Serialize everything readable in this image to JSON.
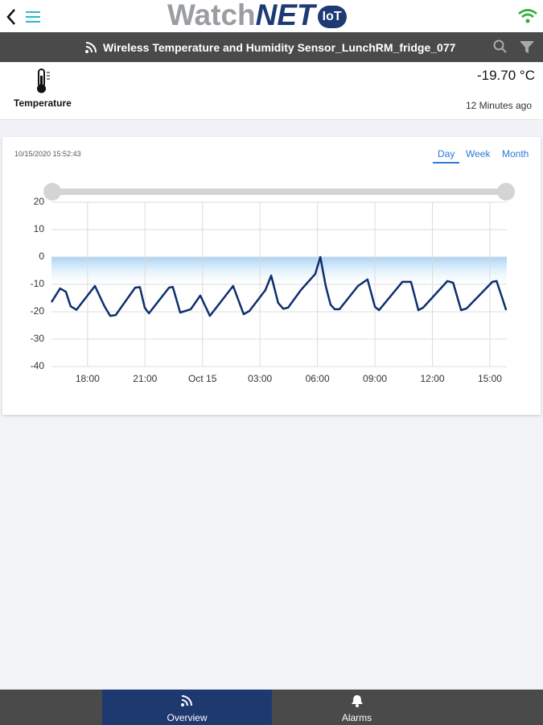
{
  "header": {
    "logo_parts": [
      "Watch",
      "NET",
      "IoT"
    ],
    "device_title": "Wireless Temperature and Humidity Sensor_LunchRM_fridge_077"
  },
  "sensor": {
    "label": "Temperature",
    "reading": "-19.70 °C",
    "updated": "12 Minutes ago"
  },
  "card": {
    "timestamp": "10/15/2020 15:52:43",
    "tabs": [
      "Day",
      "Week",
      "Month"
    ],
    "active_tab": "Day"
  },
  "chart_data": {
    "type": "line",
    "color": "#0e2f6e",
    "grid": true,
    "band": {
      "range": [
        -10,
        0
      ],
      "color": "#a9d3f5"
    },
    "x": [
      "2020-10-14T16:07",
      "2020-10-14T16:34",
      "2020-10-14T16:52",
      "2020-10-14T17:07",
      "2020-10-14T17:25",
      "2020-10-14T18:23",
      "2020-10-14T18:53",
      "2020-10-14T19:11",
      "2020-10-14T19:28",
      "2020-10-14T20:29",
      "2020-10-14T20:44",
      "2020-10-14T20:59",
      "2020-10-14T21:12",
      "2020-10-14T22:15",
      "2020-10-14T22:27",
      "2020-10-14T22:50",
      "2020-10-14T23:23",
      "2020-10-14T23:53",
      "2020-10-15T00:23",
      "2020-10-15T01:36",
      "2020-10-15T02:09",
      "2020-10-15T02:27",
      "2020-10-15T03:17",
      "2020-10-15T03:35",
      "2020-10-15T03:57",
      "2020-10-15T04:13",
      "2020-10-15T04:28",
      "2020-10-15T05:08",
      "2020-10-15T05:53",
      "2020-10-15T06:09",
      "2020-10-15T06:26",
      "2020-10-15T06:41",
      "2020-10-15T06:54",
      "2020-10-15T07:09",
      "2020-10-15T08:07",
      "2020-10-15T08:37",
      "2020-10-15T09:00",
      "2020-10-15T09:13",
      "2020-10-15T10:26",
      "2020-10-15T10:53",
      "2020-10-15T11:16",
      "2020-10-15T11:31",
      "2020-10-15T12:47",
      "2020-10-15T13:05",
      "2020-10-15T13:30",
      "2020-10-15T13:47",
      "2020-10-15T15:08",
      "2020-10-15T15:21",
      "2020-10-15T15:38",
      "2020-10-15T15:51"
    ],
    "values": [
      -16.5,
      -11.5,
      -12.7,
      -18,
      -19.3,
      -10.6,
      -18,
      -21.5,
      -21.2,
      -11.2,
      -11,
      -18.5,
      -20.6,
      -11.2,
      -10.9,
      -20.3,
      -19.1,
      -14.1,
      -21.5,
      -10.6,
      -20.9,
      -19.7,
      -12.1,
      -6.8,
      -16.8,
      -18.9,
      -18.5,
      -12.1,
      -6.2,
      0,
      -10.6,
      -17.4,
      -19.1,
      -19.1,
      -10.6,
      -8.2,
      -18.2,
      -19.4,
      -9.1,
      -9.1,
      -19.4,
      -18.5,
      -8.8,
      -9.4,
      -19.4,
      -18.8,
      -9.1,
      -8.8,
      -14.7,
      -19.4
    ],
    "xlim": [
      "2020-10-14T16:07",
      "2020-10-15T15:53"
    ],
    "xticks": [
      {
        "value": "2020-10-14T18:00",
        "label": "18:00"
      },
      {
        "value": "2020-10-14T21:00",
        "label": "21:00"
      },
      {
        "value": "2020-10-15T00:00",
        "label": "Oct 15"
      },
      {
        "value": "2020-10-15T03:00",
        "label": "03:00"
      },
      {
        "value": "2020-10-15T06:00",
        "label": "06:00"
      },
      {
        "value": "2020-10-15T09:00",
        "label": "09:00"
      },
      {
        "value": "2020-10-15T12:00",
        "label": "12:00"
      },
      {
        "value": "2020-10-15T15:00",
        "label": "15:00"
      }
    ],
    "ylim": [
      -40,
      20
    ],
    "yticks": [
      -40,
      -30,
      -20,
      -10,
      0,
      10,
      20
    ]
  },
  "nav": {
    "items": [
      "Overview",
      "Alarms"
    ],
    "active": "Overview"
  }
}
